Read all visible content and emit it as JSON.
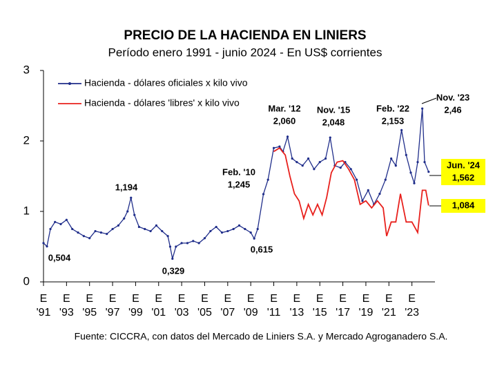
{
  "chart_data": {
    "type": "line",
    "title": "PRECIO DE LA HACIENDA EN LINIERS",
    "subtitle": "Período enero 1991 - junio 2024 - En US$ corrientes",
    "source": "Fuente: CICCRA, con datos del Mercado de Liniers S.A. y Mercado Agroganadero S.A.",
    "xlim": [
      1991,
      2025
    ],
    "xtick_prefix": "E",
    "xticks": [
      {
        "value": 1991,
        "label": "'91"
      },
      {
        "value": 1993,
        "label": "'93"
      },
      {
        "value": 1995,
        "label": "'95"
      },
      {
        "value": 1997,
        "label": "'97"
      },
      {
        "value": 1999,
        "label": "'99"
      },
      {
        "value": 2001,
        "label": "'01"
      },
      {
        "value": 2003,
        "label": "'03"
      },
      {
        "value": 2005,
        "label": "'05"
      },
      {
        "value": 2007,
        "label": "'07"
      },
      {
        "value": 2009,
        "label": "'09"
      },
      {
        "value": 2011,
        "label": "'11"
      },
      {
        "value": 2013,
        "label": "'13"
      },
      {
        "value": 2015,
        "label": "'15"
      },
      {
        "value": 2017,
        "label": "'17"
      },
      {
        "value": 2019,
        "label": "'19"
      },
      {
        "value": 2021,
        "label": "'21"
      },
      {
        "value": 2023,
        "label": "'23"
      }
    ],
    "ylim": [
      0,
      3
    ],
    "yticks": [
      0,
      1,
      2,
      3
    ],
    "grid": false,
    "legend": "top-left",
    "highlight_color": "#ffff00",
    "series": [
      {
        "name": "Hacienda - dólares oficiales x kilo vivo",
        "color": "#1f2d8a",
        "markers": true,
        "x": [
          1991.0,
          1991.3,
          1991.6,
          1992.0,
          1992.5,
          1993.0,
          1993.5,
          1994.0,
          1994.5,
          1995.0,
          1995.5,
          1996.0,
          1996.5,
          1997.0,
          1997.5,
          1998.0,
          1998.3,
          1998.6,
          1998.9,
          1999.3,
          1999.8,
          2000.3,
          2000.8,
          2001.3,
          2001.8,
          2002.0,
          2002.2,
          2002.5,
          2003.0,
          2003.5,
          2004.0,
          2004.5,
          2005.0,
          2005.5,
          2006.0,
          2006.5,
          2007.0,
          2007.5,
          2008.0,
          2008.5,
          2009.0,
          2009.3,
          2009.6,
          2010.1,
          2010.5,
          2011.0,
          2011.5,
          2011.8,
          2012.2,
          2012.6,
          2013.0,
          2013.5,
          2014.0,
          2014.5,
          2015.0,
          2015.5,
          2015.9,
          2016.3,
          2016.8,
          2017.2,
          2017.7,
          2018.2,
          2018.7,
          2019.2,
          2019.7,
          2020.2,
          2020.7,
          2021.2,
          2021.6,
          2022.1,
          2022.5,
          2022.9,
          2023.2,
          2023.5,
          2023.9,
          2024.1,
          2024.45
        ],
        "values": [
          0.55,
          0.504,
          0.75,
          0.85,
          0.82,
          0.88,
          0.75,
          0.7,
          0.65,
          0.62,
          0.72,
          0.7,
          0.68,
          0.75,
          0.8,
          0.9,
          1.0,
          1.194,
          0.95,
          0.78,
          0.75,
          0.72,
          0.8,
          0.72,
          0.65,
          0.5,
          0.329,
          0.5,
          0.55,
          0.55,
          0.58,
          0.55,
          0.62,
          0.72,
          0.78,
          0.7,
          0.72,
          0.75,
          0.8,
          0.75,
          0.7,
          0.615,
          0.75,
          1.245,
          1.45,
          1.9,
          1.92,
          1.85,
          2.06,
          1.75,
          1.7,
          1.65,
          1.75,
          1.6,
          1.7,
          1.75,
          2.048,
          1.65,
          1.62,
          1.7,
          1.6,
          1.45,
          1.15,
          1.3,
          1.1,
          1.25,
          1.45,
          1.75,
          1.65,
          2.153,
          1.8,
          1.55,
          1.4,
          1.7,
          2.46,
          1.7,
          1.562
        ]
      },
      {
        "name": "Hacienda - dólares 'libres' x kilo vivo",
        "color": "#e8201c",
        "markers": false,
        "x": [
          2011.0,
          2011.5,
          2012.0,
          2012.4,
          2012.8,
          2013.2,
          2013.6,
          2014.0,
          2014.4,
          2014.8,
          2015.2,
          2015.6,
          2016.0,
          2016.5,
          2017.0,
          2017.5,
          2018.0,
          2018.5,
          2019.0,
          2019.5,
          2020.0,
          2020.5,
          2020.8,
          2021.2,
          2021.6,
          2022.0,
          2022.5,
          2023.0,
          2023.5,
          2023.9,
          2024.2,
          2024.45
        ],
        "values": [
          1.85,
          1.9,
          1.8,
          1.5,
          1.25,
          1.15,
          0.9,
          1.1,
          0.95,
          1.1,
          0.95,
          1.2,
          1.55,
          1.7,
          1.72,
          1.6,
          1.45,
          1.1,
          1.15,
          1.05,
          1.15,
          1.05,
          0.65,
          0.85,
          0.85,
          1.25,
          0.85,
          0.85,
          0.7,
          1.3,
          1.3,
          1.084
        ]
      }
    ],
    "annotations": [
      {
        "lines": [
          "0,504"
        ],
        "highlight": false
      },
      {
        "lines": [
          "1,194"
        ],
        "highlight": false
      },
      {
        "lines": [
          "0,329"
        ],
        "highlight": false
      },
      {
        "lines": [
          "Feb. '10",
          "1,245"
        ],
        "highlight": false
      },
      {
        "lines": [
          "0,615"
        ],
        "highlight": false
      },
      {
        "lines": [
          "Mar. '12",
          "2,060"
        ],
        "highlight": false
      },
      {
        "lines": [
          "Nov. '15",
          "2,048"
        ],
        "highlight": false
      },
      {
        "lines": [
          "Feb. '22",
          "2,153"
        ],
        "highlight": false
      },
      {
        "lines": [
          "Nov. '23",
          "2,46"
        ],
        "highlight": false
      },
      {
        "lines": [
          "Jun. '24",
          "1,562"
        ],
        "highlight": true
      },
      {
        "lines": [
          "1,084"
        ],
        "highlight": true
      }
    ]
  }
}
